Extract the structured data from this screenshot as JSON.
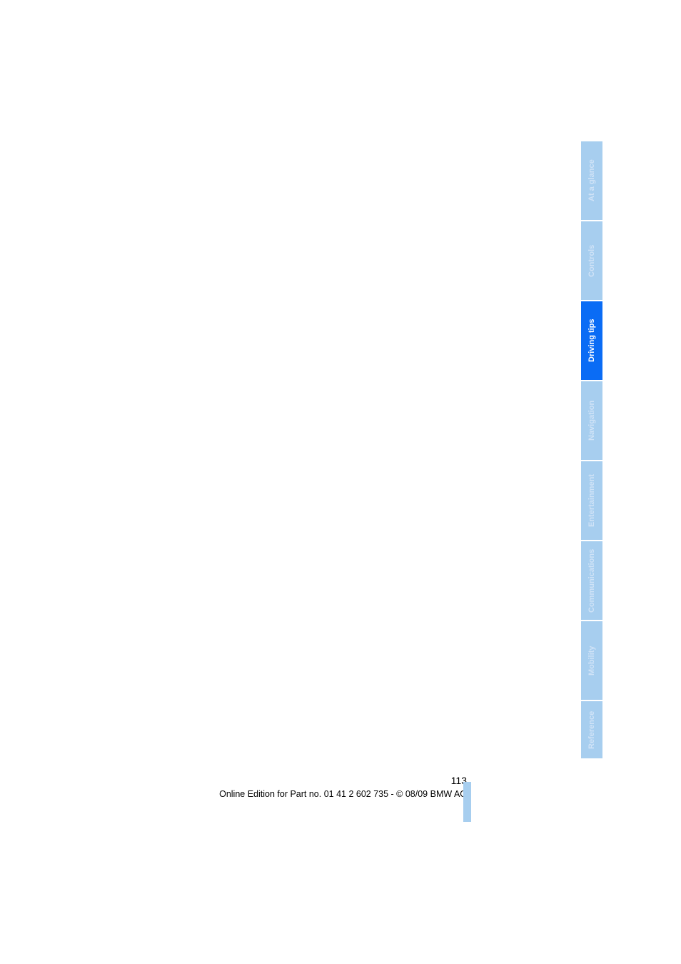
{
  "tabs": [
    {
      "label": "At a glance",
      "active": false
    },
    {
      "label": "Controls",
      "active": false
    },
    {
      "label": "Driving tips",
      "active": true
    },
    {
      "label": "Navigation",
      "active": false
    },
    {
      "label": "Entertainment",
      "active": false
    },
    {
      "label": "Communications",
      "active": false
    },
    {
      "label": "Mobility",
      "active": false
    },
    {
      "label": "Reference",
      "active": false
    }
  ],
  "footer": {
    "page_number": "113",
    "copyright": "Online Edition for Part no. 01 41 2 602 735 - © 08/09 BMW AG"
  },
  "colors": {
    "tab_inactive_bg": "#a7ceef",
    "tab_inactive_text": "#d0e3f7",
    "tab_active_bg": "#0a6cf5",
    "tab_active_text": "#ffffff",
    "page_bg": "#ffffff",
    "footer_text": "#000000"
  },
  "typography": {
    "tab_fontsize": 11,
    "tab_fontweight": "bold",
    "footer_fontsize": 13,
    "page_number_fontsize": 14
  }
}
